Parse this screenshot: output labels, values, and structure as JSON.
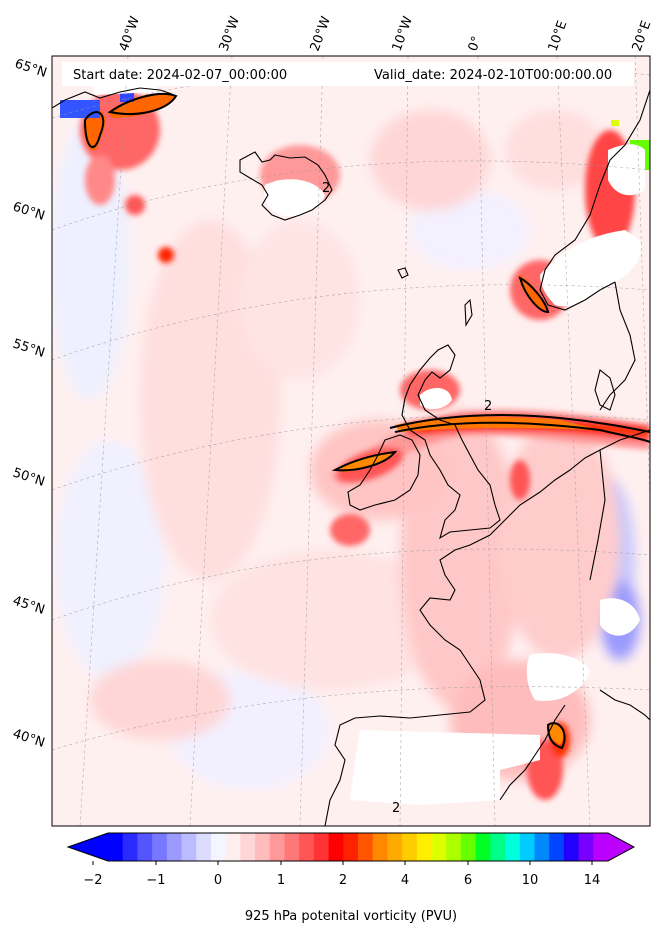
{
  "header": {
    "start_date": "Start date: 2024-02-07_00:00:00",
    "valid_date": "Valid_date: 2024-02-10T00:00:00.00"
  },
  "lon_labels": [
    "40°W",
    "30°W",
    "20°W",
    "10°W",
    "0°",
    "10°E",
    "20°E"
  ],
  "lat_labels": [
    "65°N",
    "60°N",
    "55°N",
    "50°N",
    "45°N",
    "40°N"
  ],
  "contour_labels": [
    "2",
    "2",
    "2"
  ],
  "colorbar": {
    "title": "925 hPa potenital vorticity (PVU)",
    "tick_labels": [
      "−2",
      "−1",
      "0",
      "1",
      "2",
      "4",
      "6",
      "10",
      "14"
    ],
    "colors": [
      "#0000ff",
      "#2a2aff",
      "#5555ff",
      "#7777ff",
      "#9a9aff",
      "#bbbbff",
      "#dcdcff",
      "#f5f5ff",
      "#ffeeee",
      "#ffd6d6",
      "#ffbcbc",
      "#ff9999",
      "#ff7777",
      "#ff5555",
      "#ff3333",
      "#ff0000",
      "#ff2200",
      "#ff5500",
      "#ff8800",
      "#ffaa00",
      "#ffcc00",
      "#ffee00",
      "#ddff00",
      "#aaff00",
      "#66ff00",
      "#00ff22",
      "#00ff88",
      "#00ffdd",
      "#00ccff",
      "#0088ff",
      "#0044ff",
      "#2200ff",
      "#7700ff",
      "#bb00ff"
    ]
  }
}
